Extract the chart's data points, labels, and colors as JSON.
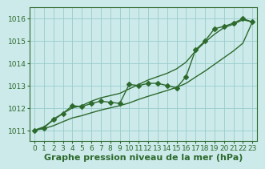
{
  "hours": [
    0,
    1,
    2,
    3,
    4,
    5,
    6,
    7,
    8,
    9,
    10,
    11,
    12,
    13,
    14,
    15,
    16,
    17,
    18,
    19,
    20,
    21,
    22,
    23
  ],
  "main_line": [
    1011.0,
    1011.1,
    1011.5,
    1011.75,
    1012.1,
    1012.05,
    1012.2,
    1012.3,
    1012.25,
    1012.2,
    1013.05,
    1013.0,
    1013.1,
    1013.1,
    1013.0,
    1012.9,
    1013.4,
    1014.6,
    1015.0,
    1015.55,
    1015.65,
    1015.8,
    1016.0,
    1015.85
  ],
  "upper_line": [
    1011.0,
    1011.15,
    1011.45,
    1011.75,
    1012.0,
    1012.1,
    1012.3,
    1012.45,
    1012.55,
    1012.65,
    1012.85,
    1013.05,
    1013.25,
    1013.4,
    1013.55,
    1013.75,
    1014.05,
    1014.55,
    1014.95,
    1015.3,
    1015.6,
    1015.75,
    1015.95,
    1015.85
  ],
  "lower_line": [
    1011.0,
    1011.07,
    1011.2,
    1011.38,
    1011.55,
    1011.65,
    1011.78,
    1011.9,
    1012.0,
    1012.1,
    1012.22,
    1012.38,
    1012.52,
    1012.65,
    1012.78,
    1012.92,
    1013.1,
    1013.38,
    1013.65,
    1013.95,
    1014.25,
    1014.55,
    1014.9,
    1015.85
  ],
  "line_color": "#2d6a2d",
  "bg_color": "#cceaea",
  "grid_color": "#99cccc",
  "xlabel": "Graphe pression niveau de la mer (hPa)",
  "ylim": [
    1010.5,
    1016.5
  ],
  "xlim": [
    -0.5,
    23.5
  ],
  "yticks": [
    1011,
    1012,
    1013,
    1014,
    1015,
    1016
  ],
  "xticks": [
    0,
    1,
    2,
    3,
    4,
    5,
    6,
    7,
    8,
    9,
    10,
    11,
    12,
    13,
    14,
    15,
    16,
    17,
    18,
    19,
    20,
    21,
    22,
    23
  ],
  "marker": "D",
  "markersize": 3.0,
  "linewidth": 1.0,
  "xlabel_fontsize": 8,
  "tick_fontsize": 6.5
}
